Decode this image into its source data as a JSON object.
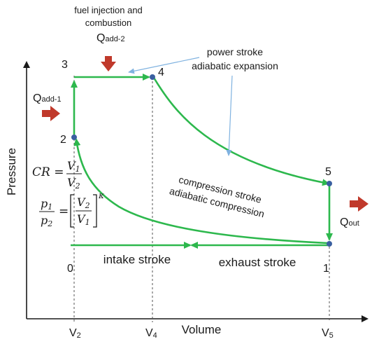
{
  "annotations": {
    "fuel_injection_line1": "fuel injection and",
    "fuel_injection_line2": "combustion",
    "power_stroke_line1": "power stroke",
    "power_stroke_line2": "adiabatic expansion",
    "compression_line1": "compression stroke",
    "compression_line2": "adiabatic compression",
    "intake": "intake stroke",
    "exhaust": "exhaust stroke"
  },
  "heat": {
    "q_add_1_base": "Q",
    "q_add_1_sub": "add-1",
    "q_add_2_base": "Q",
    "q_add_2_sub": "add-2",
    "q_out_base": "Q",
    "q_out_sub": "out"
  },
  "points": {
    "p0": "0",
    "p1": "1",
    "p2": "2",
    "p3": "3",
    "p4": "4",
    "p5": "5"
  },
  "axes": {
    "y_label": "Pressure",
    "x_label": "Volume",
    "tick_v2_base": "V",
    "tick_v2_sub": "2",
    "tick_v4_base": "V",
    "tick_v4_sub": "4",
    "tick_v5_base": "V",
    "tick_v5_sub": "5"
  },
  "equations": {
    "cr_lhs": "CR =",
    "cr_num_base": "V",
    "cr_num_sub": "1",
    "cr_den_base": "V",
    "cr_den_sub": "2",
    "pr_num_base": "p",
    "pr_num_sub": "1",
    "pr_den_base": "p",
    "pr_den_sub": "2",
    "pr_eq": "=",
    "pr_in_num_base": "V",
    "pr_in_num_sub": "2",
    "pr_in_den_base": "V",
    "pr_in_den_sub": "1",
    "pr_exp": "κ"
  },
  "colors": {
    "cycle": "#2db84d",
    "point": "#3a5fa0",
    "arrow_heat": "#c0392b",
    "pointer": "#7fb2e0",
    "axis": "#1a1a1a"
  }
}
